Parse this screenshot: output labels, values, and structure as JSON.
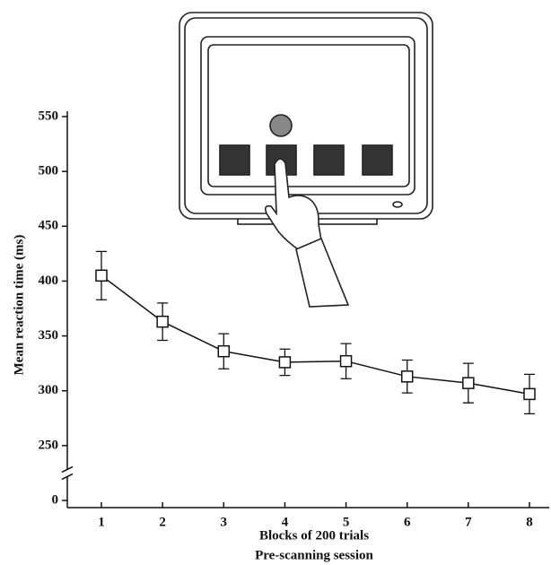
{
  "chart_data": {
    "type": "line",
    "x_label": "Blocks of 200 trials",
    "x_sublabel": "Pre-scanning session",
    "y_label": "Mean reaction time (ms)",
    "categories": [
      "1",
      "2",
      "3",
      "4",
      "5",
      "6",
      "7",
      "8"
    ],
    "values": [
      405,
      363,
      336,
      326,
      327,
      313,
      307,
      297
    ],
    "errors": [
      22,
      17,
      16,
      12,
      16,
      15,
      18,
      18
    ],
    "color": "#111111",
    "marker": "square",
    "ylim": [
      0,
      550
    ],
    "yticks": [
      0,
      250,
      300,
      350,
      400,
      450,
      500,
      550
    ],
    "axis_break": true
  }
}
